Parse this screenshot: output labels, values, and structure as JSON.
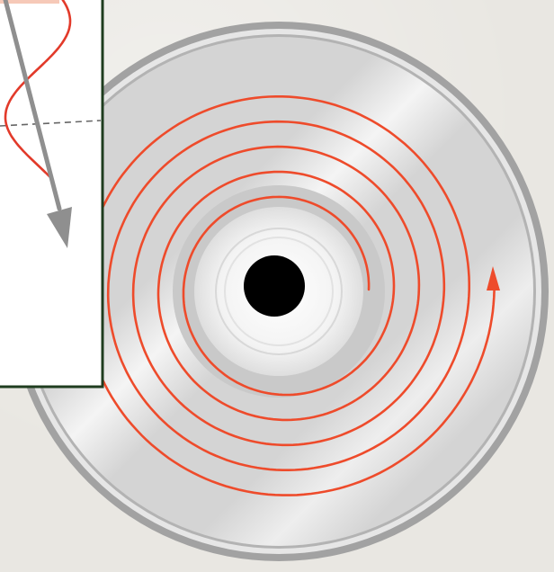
{
  "diagram": {
    "subject": "compact-disc-spiral-track",
    "colors": {
      "background": "#e9e7e2",
      "disc_rim": "#9b9b9b",
      "disc_surface": "#d4d4d4",
      "disc_highlight": "#f2f2f2",
      "hub": "#f4f4f4",
      "center_hole": "#000000",
      "spiral_track": "#ee4b2b",
      "inset_border": "#1f3d1f",
      "inset_background": "#ffffff",
      "laser_arrow": "#8f8f8f",
      "wave": "#e23a2a",
      "dashed_line": "#666666"
    },
    "icons": {
      "direction_arrow": "arrow-head-icon",
      "laser_beam": "arrow-down-icon"
    }
  }
}
